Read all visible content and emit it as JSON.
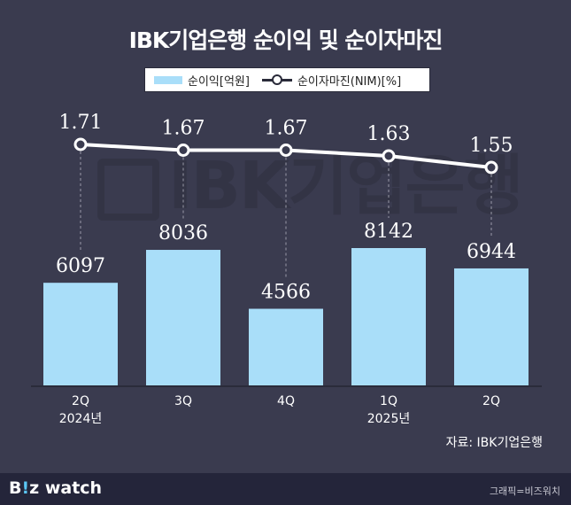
{
  "title": "IBK기업은행 순이익 및 순이자마진",
  "legend": {
    "bar_label": "순이익[억원]",
    "line_label": "순이자마진(NIM)[%]"
  },
  "watermark": "IBK기업은행",
  "source": "자료: IBK기업은행",
  "footer": {
    "brand_pre": "B",
    "brand_accent": "!",
    "brand_post": "z watch",
    "credit": "그래픽=비즈워치"
  },
  "colors": {
    "background": "#3a3b4f",
    "bar": "#a9def9",
    "line": "#ffffff"
  },
  "chart_data": {
    "type": "bar",
    "categories": [
      "2Q",
      "3Q",
      "4Q",
      "1Q",
      "2Q"
    ],
    "category_sublabels": [
      "2024년",
      "",
      "",
      "2025년",
      ""
    ],
    "series": [
      {
        "name": "순이익[억원]",
        "type": "bar",
        "values": [
          6097,
          8036,
          4566,
          8142,
          6944
        ]
      },
      {
        "name": "순이자마진(NIM)[%]",
        "type": "line",
        "values": [
          1.71,
          1.67,
          1.67,
          1.63,
          1.55
        ]
      }
    ],
    "grid": false,
    "legend_position": "top-center"
  }
}
